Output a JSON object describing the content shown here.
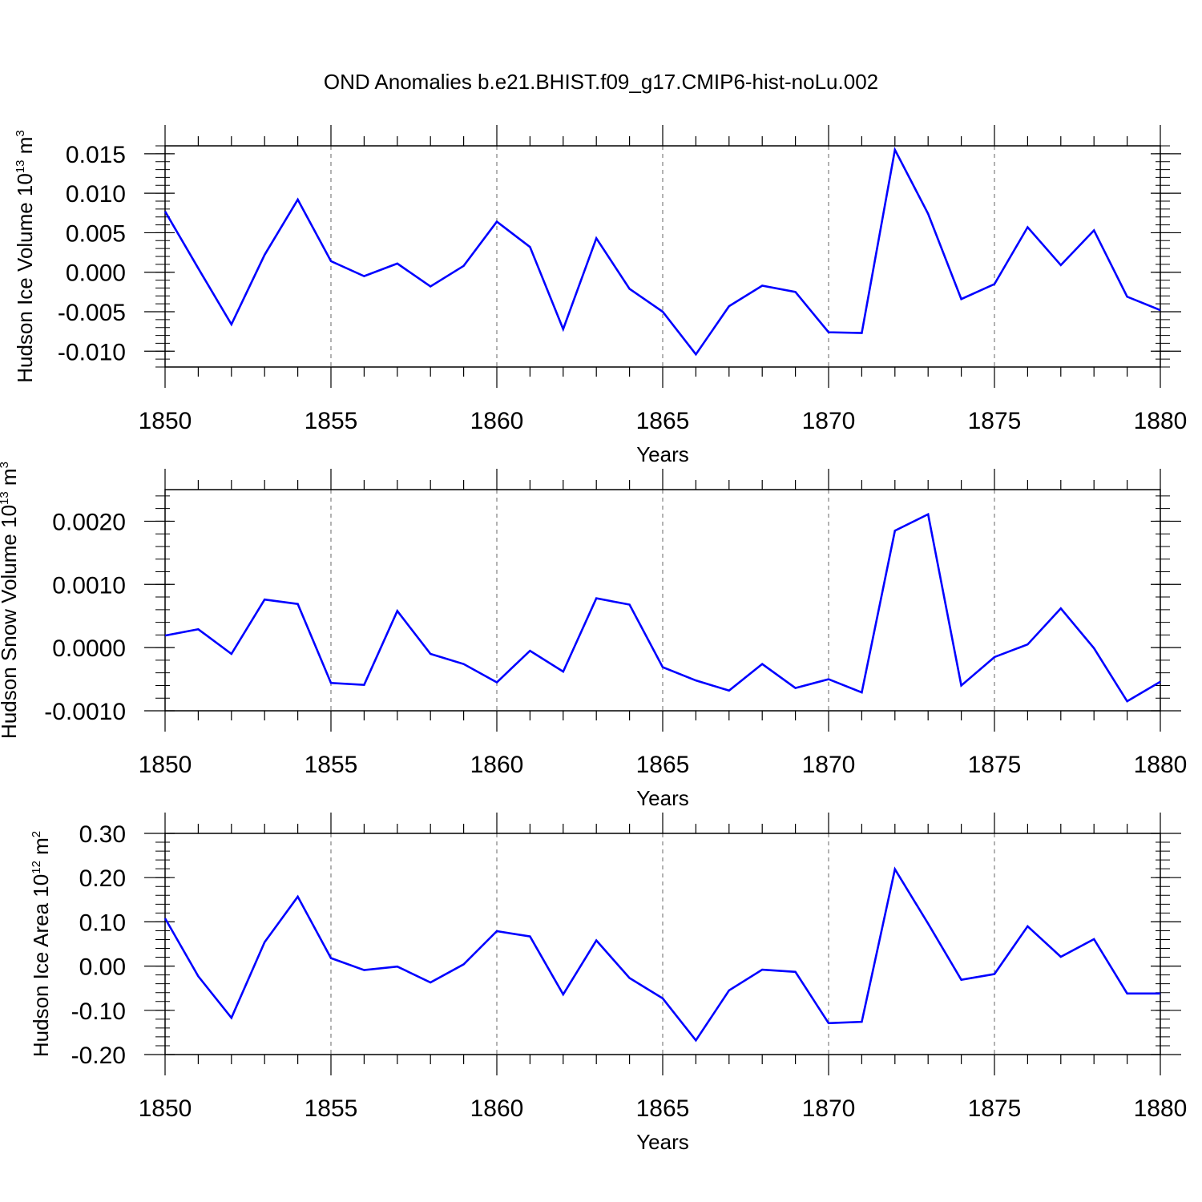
{
  "title": "OND Anomalies b.e21.BHIST.f09_g17.CMIP6-hist-noLu.002",
  "colors": {
    "line": "#0000ff",
    "axis": "#000000",
    "grid": "#808080"
  },
  "chart_data": [
    {
      "type": "line",
      "xlabel": "Years",
      "ylabel": {
        "text": "Hudson Ice Volume 10",
        "sup": "13",
        "unit": " m",
        "unit_sup": "3"
      },
      "xlim": [
        1850,
        1880
      ],
      "ylim": [
        -0.012,
        0.016
      ],
      "xticks": [
        1850,
        1855,
        1860,
        1865,
        1870,
        1875,
        1880
      ],
      "xtick_labels": [
        "1850",
        "1855",
        "1860",
        "1865",
        "1870",
        "1875",
        "1880"
      ],
      "yticks": [
        -0.01,
        -0.005,
        0.0,
        0.005,
        0.01,
        0.015
      ],
      "ytick_labels": [
        "-0.010",
        "-0.005",
        "0.000",
        "0.005",
        "0.010",
        "0.015"
      ],
      "yminor_step": 0.001,
      "grid": "x dashed",
      "x": [
        1850,
        1851,
        1852,
        1853,
        1854,
        1855,
        1856,
        1857,
        1858,
        1859,
        1860,
        1861,
        1862,
        1863,
        1864,
        1865,
        1866,
        1867,
        1868,
        1869,
        1870,
        1871,
        1872,
        1873,
        1874,
        1875,
        1876,
        1877,
        1878,
        1879,
        1880
      ],
      "values": [
        0.0077,
        0.0005,
        -0.0066,
        0.0022,
        0.0092,
        0.0014,
        -0.0005,
        0.0011,
        -0.0018,
        0.0008,
        0.0064,
        0.0032,
        -0.0072,
        0.0043,
        -0.0021,
        -0.005,
        -0.0104,
        -0.0043,
        -0.0017,
        -0.0025,
        -0.0076,
        -0.0077,
        0.0155,
        0.0074,
        -0.0034,
        -0.0015,
        0.0057,
        0.0009,
        0.0053,
        -0.0031,
        -0.0048
      ]
    },
    {
      "type": "line",
      "xlabel": "Years",
      "ylabel": {
        "text": "Hudson Snow Volume 10",
        "sup": "13",
        "unit": " m",
        "unit_sup": "3"
      },
      "xlim": [
        1850,
        1880
      ],
      "ylim": [
        -0.001,
        0.0025
      ],
      "xticks": [
        1850,
        1855,
        1860,
        1865,
        1870,
        1875,
        1880
      ],
      "xtick_labels": [
        "1850",
        "1855",
        "1860",
        "1865",
        "1870",
        "1875",
        "1880"
      ],
      "yticks": [
        -0.001,
        0.0,
        0.001,
        0.002
      ],
      "ytick_labels": [
        "-0.0010",
        "0.0000",
        "0.0010",
        "0.0020"
      ],
      "yminor_step": 0.0002,
      "grid": "x dashed",
      "x": [
        1850,
        1851,
        1852,
        1853,
        1854,
        1855,
        1856,
        1857,
        1858,
        1859,
        1860,
        1861,
        1862,
        1863,
        1864,
        1865,
        1866,
        1867,
        1868,
        1869,
        1870,
        1871,
        1872,
        1873,
        1874,
        1875,
        1876,
        1877,
        1878,
        1879,
        1880
      ],
      "values": [
        0.00019,
        0.00029,
        -0.0001,
        0.00076,
        0.00069,
        -0.00056,
        -0.00059,
        0.00058,
        -0.0001,
        -0.00026,
        -0.00055,
        -5e-05,
        -0.00038,
        0.00078,
        0.00068,
        -0.00031,
        -0.00052,
        -0.00068,
        -0.00026,
        -0.00064,
        -0.0005,
        -0.00071,
        0.00185,
        0.00211,
        -0.0006,
        -0.00015,
        5e-05,
        0.00062,
        -1e-05,
        -0.00085,
        -0.00054
      ]
    },
    {
      "type": "line",
      "xlabel": "Years",
      "ylabel": {
        "text": "Hudson Ice Area 10",
        "sup": "12",
        "unit": " m",
        "unit_sup": "2"
      },
      "xlim": [
        1850,
        1880
      ],
      "ylim": [
        -0.2,
        0.3
      ],
      "xticks": [
        1850,
        1855,
        1860,
        1865,
        1870,
        1875,
        1880
      ],
      "xtick_labels": [
        "1850",
        "1855",
        "1860",
        "1865",
        "1870",
        "1875",
        "1880"
      ],
      "yticks": [
        -0.2,
        -0.1,
        0.0,
        0.1,
        0.2,
        0.3
      ],
      "ytick_labels": [
        "-0.20",
        "-0.10",
        "0.00",
        "0.10",
        "0.20",
        "0.30"
      ],
      "yminor_step": 0.02,
      "grid": "x dashed",
      "x": [
        1850,
        1851,
        1852,
        1853,
        1854,
        1855,
        1856,
        1857,
        1858,
        1859,
        1860,
        1861,
        1862,
        1863,
        1864,
        1865,
        1866,
        1867,
        1868,
        1869,
        1870,
        1871,
        1872,
        1873,
        1874,
        1875,
        1876,
        1877,
        1878,
        1879,
        1880
      ],
      "values": [
        0.108,
        -0.023,
        -0.117,
        0.054,
        0.157,
        0.018,
        -0.009,
        -0.001,
        -0.037,
        0.004,
        0.079,
        0.067,
        -0.064,
        0.058,
        -0.027,
        -0.073,
        -0.168,
        -0.055,
        -0.008,
        -0.013,
        -0.129,
        -0.126,
        0.219,
        0.096,
        -0.031,
        -0.018,
        0.09,
        0.021,
        0.061,
        -0.062,
        -0.062
      ]
    }
  ]
}
